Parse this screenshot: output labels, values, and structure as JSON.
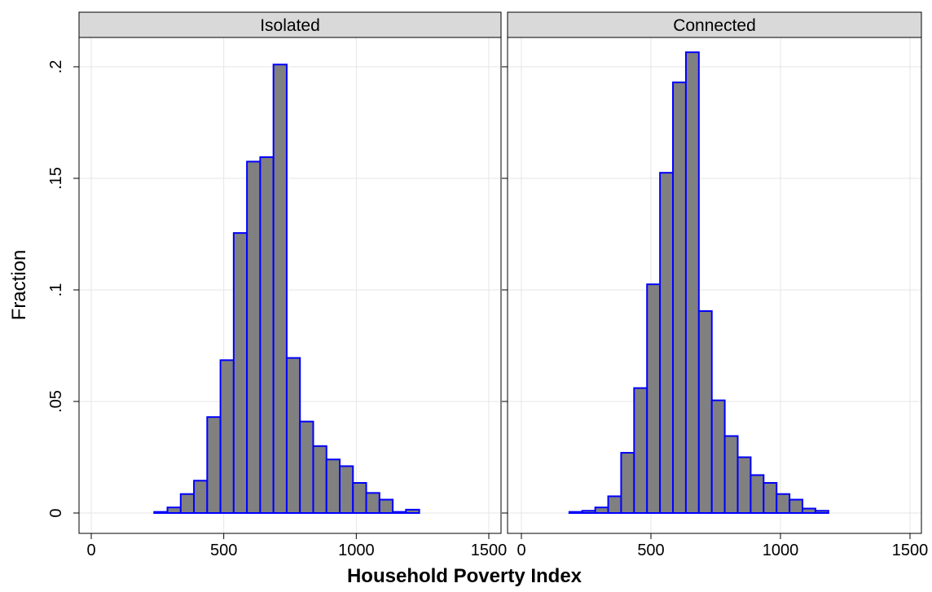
{
  "chart_data": {
    "type": "bar",
    "xlabel": "Household Poverty Index",
    "ylabel": "Fraction",
    "xlim": [
      0,
      1500
    ],
    "ylim": [
      0,
      0.2
    ],
    "x_ticks": [
      {
        "value": 0,
        "label": "0"
      },
      {
        "value": 500,
        "label": "500"
      },
      {
        "value": 1000,
        "label": "1000"
      },
      {
        "value": 1500,
        "label": "1500"
      }
    ],
    "y_ticks": [
      {
        "value": 0,
        "label": "0"
      },
      {
        "value": 0.05,
        "label": ".05"
      },
      {
        "value": 0.1,
        "label": ".1"
      },
      {
        "value": 0.15,
        "label": ".15"
      },
      {
        "value": 0.2,
        "label": ".2"
      }
    ],
    "grid": true,
    "bar_color": "#808080",
    "bar_edge_color": "#0000ff",
    "panels": [
      {
        "title": "Isolated",
        "bins": [
          {
            "x0": 237.5,
            "x1": 287.5,
            "y": 0.0005
          },
          {
            "x0": 287.5,
            "x1": 337.5,
            "y": 0.0025
          },
          {
            "x0": 337.5,
            "x1": 387.5,
            "y": 0.0085
          },
          {
            "x0": 387.5,
            "x1": 437.5,
            "y": 0.0145
          },
          {
            "x0": 437.5,
            "x1": 487.5,
            "y": 0.043
          },
          {
            "x0": 487.5,
            "x1": 537.5,
            "y": 0.0685
          },
          {
            "x0": 537.5,
            "x1": 587.5,
            "y": 0.1255
          },
          {
            "x0": 587.5,
            "x1": 637.5,
            "y": 0.1575
          },
          {
            "x0": 637.5,
            "x1": 687.5,
            "y": 0.1595
          },
          {
            "x0": 687.5,
            "x1": 737.5,
            "y": 0.201
          },
          {
            "x0": 737.5,
            "x1": 787.5,
            "y": 0.0695
          },
          {
            "x0": 787.5,
            "x1": 837.5,
            "y": 0.041
          },
          {
            "x0": 837.5,
            "x1": 887.5,
            "y": 0.03
          },
          {
            "x0": 887.5,
            "x1": 937.5,
            "y": 0.024
          },
          {
            "x0": 937.5,
            "x1": 987.5,
            "y": 0.021
          },
          {
            "x0": 987.5,
            "x1": 1037.5,
            "y": 0.0135
          },
          {
            "x0": 1037.5,
            "x1": 1087.5,
            "y": 0.009
          },
          {
            "x0": 1087.5,
            "x1": 1137.5,
            "y": 0.006
          },
          {
            "x0": 1137.5,
            "x1": 1187.5,
            "y": 0.0005
          },
          {
            "x0": 1187.5,
            "x1": 1237.5,
            "y": 0.0015
          }
        ]
      },
      {
        "title": "Connected",
        "bins": [
          {
            "x0": 185,
            "x1": 235,
            "y": 0.0005
          },
          {
            "x0": 235,
            "x1": 285,
            "y": 0.001
          },
          {
            "x0": 285,
            "x1": 335,
            "y": 0.0025
          },
          {
            "x0": 335,
            "x1": 385,
            "y": 0.0075
          },
          {
            "x0": 385,
            "x1": 435,
            "y": 0.027
          },
          {
            "x0": 435,
            "x1": 485,
            "y": 0.056
          },
          {
            "x0": 485,
            "x1": 535,
            "y": 0.1025
          },
          {
            "x0": 535,
            "x1": 585,
            "y": 0.1525
          },
          {
            "x0": 585,
            "x1": 635,
            "y": 0.193
          },
          {
            "x0": 635,
            "x1": 685,
            "y": 0.2065
          },
          {
            "x0": 685,
            "x1": 735,
            "y": 0.0905
          },
          {
            "x0": 735,
            "x1": 785,
            "y": 0.0505
          },
          {
            "x0": 785,
            "x1": 835,
            "y": 0.0345
          },
          {
            "x0": 835,
            "x1": 885,
            "y": 0.025
          },
          {
            "x0": 885,
            "x1": 935,
            "y": 0.017
          },
          {
            "x0": 935,
            "x1": 985,
            "y": 0.0135
          },
          {
            "x0": 985,
            "x1": 1035,
            "y": 0.0085
          },
          {
            "x0": 1035,
            "x1": 1085,
            "y": 0.006
          },
          {
            "x0": 1085,
            "x1": 1135,
            "y": 0.002
          },
          {
            "x0": 1135,
            "x1": 1185,
            "y": 0.001
          }
        ]
      }
    ]
  }
}
